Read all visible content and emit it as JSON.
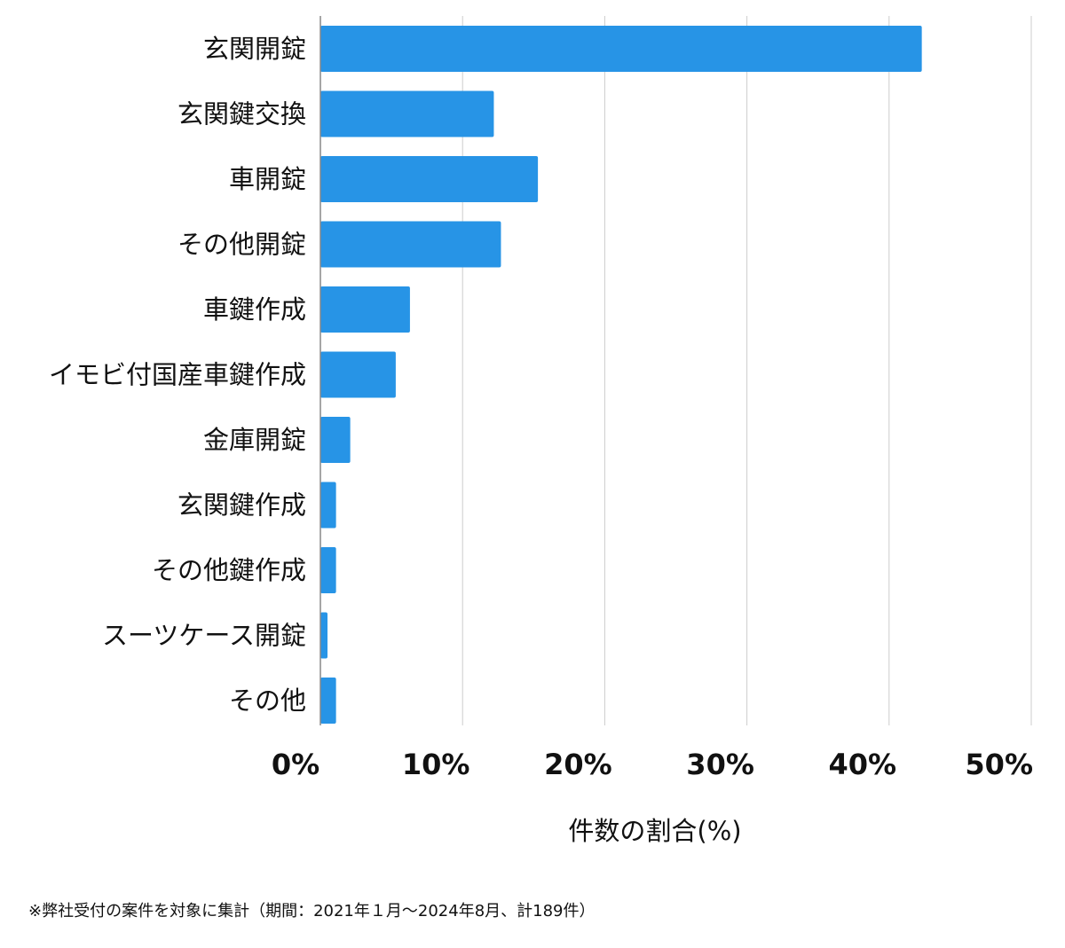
{
  "chart_data": {
    "type": "bar",
    "orientation": "horizontal",
    "categories": [
      "玄関開錠",
      "玄関鍵交換",
      "車開錠",
      "その他開錠",
      "車鍵作成",
      "イモビ付国産車鍵作成",
      "金庫開錠",
      "玄関鍵作成",
      "その他鍵作成",
      "スーツケース開錠",
      "その他"
    ],
    "values": [
      42.3,
      12.2,
      15.3,
      12.7,
      6.3,
      5.3,
      2.1,
      1.1,
      1.1,
      0.5,
      1.1
    ],
    "xlim": [
      0,
      50
    ],
    "xticks": [
      0,
      10,
      20,
      30,
      40,
      50
    ],
    "xtick_labels": [
      "0%",
      "10%",
      "20%",
      "30%",
      "40%",
      "50%"
    ],
    "xlabel": "件数の割合(%)",
    "ylabel": "",
    "title": "",
    "grid": "vertical",
    "bar_color": "#2794e6",
    "grid_color": "#cccccc",
    "axis_color": "#888888"
  },
  "footnote": "※弊社受付の案件を対象に集計（期間：2021年１月～2024年8月、計189件）"
}
